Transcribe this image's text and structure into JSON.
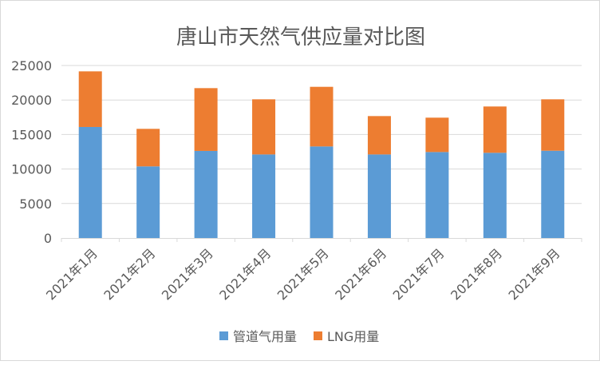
{
  "chart_data": {
    "type": "bar",
    "stacked": true,
    "title": "唐山市天然气供应量对比图",
    "xlabel": "",
    "ylabel": "",
    "ylim": [
      0,
      25000
    ],
    "yticks": [
      0,
      5000,
      10000,
      15000,
      20000,
      25000
    ],
    "grid": true,
    "legend_position": "bottom",
    "categories": [
      "2021年1月",
      "2021年2月",
      "2021年3月",
      "2021年4月",
      "2021年5月",
      "2021年6月",
      "2021年7月",
      "2021年8月",
      "2021年9月"
    ],
    "series": [
      {
        "name": "管道气用量",
        "color": "#5b9bd5",
        "values": [
          16090,
          10380,
          12620,
          12110,
          13270,
          12110,
          12460,
          12350,
          12650
        ]
      },
      {
        "name": "LNG用量",
        "color": "#ed7d31",
        "values": [
          8060,
          5440,
          9100,
          7990,
          8640,
          5560,
          4980,
          6710,
          7450
        ]
      }
    ]
  }
}
